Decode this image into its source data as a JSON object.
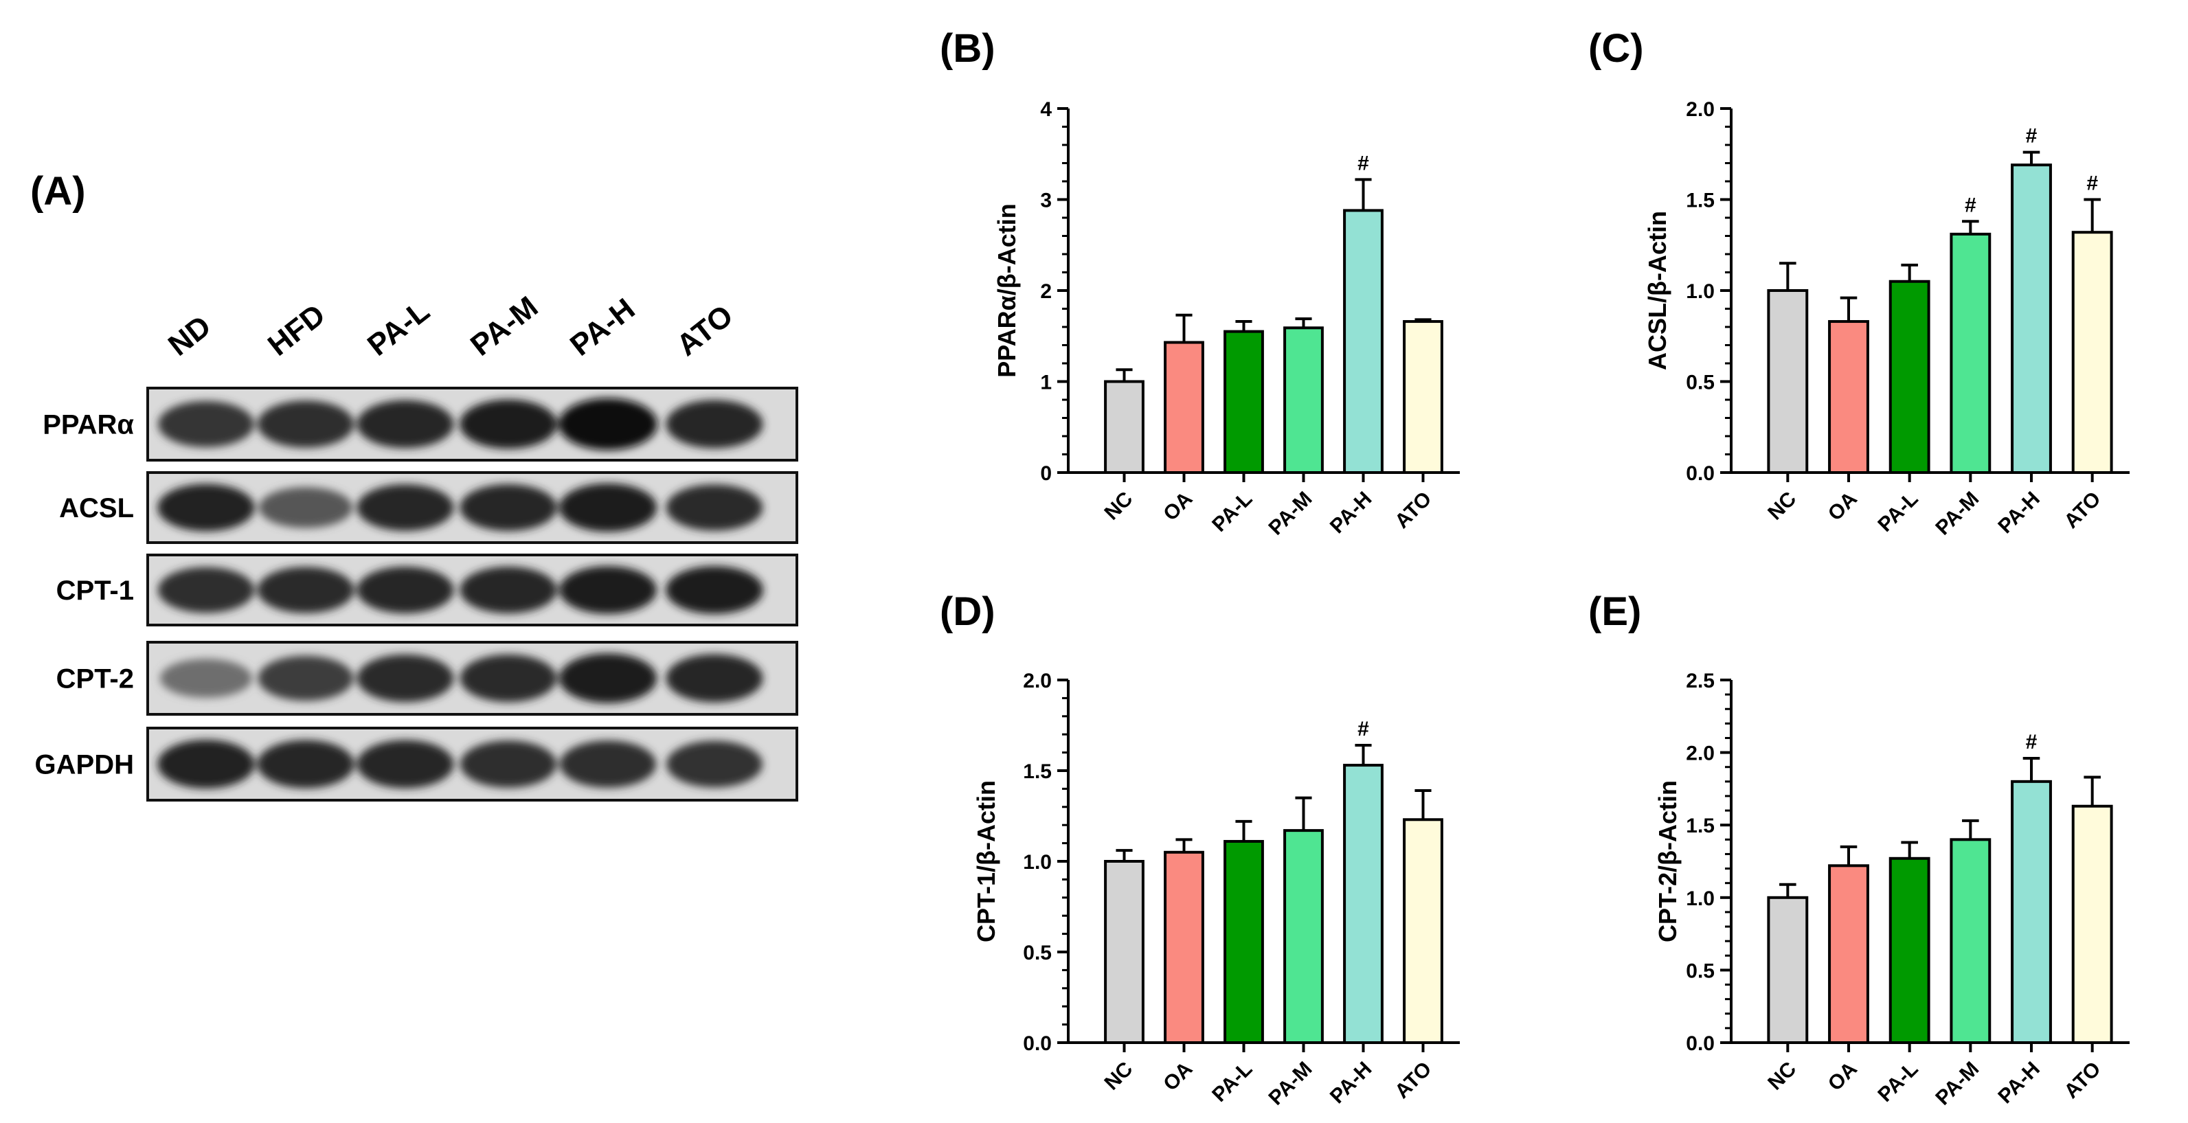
{
  "blot": {
    "panel_label": "(A)",
    "lanes": [
      "ND",
      "HFD",
      "PA-L",
      "PA-M",
      "PA-H",
      "ATO"
    ],
    "proteins": [
      "PPARα",
      "ACSL",
      "CPT-1",
      "CPT-2",
      "GAPDH"
    ],
    "band_intensity": [
      [
        0.78,
        0.82,
        0.85,
        0.9,
        1.0,
        0.86
      ],
      [
        0.88,
        0.62,
        0.85,
        0.86,
        0.92,
        0.84
      ],
      [
        0.82,
        0.84,
        0.86,
        0.86,
        0.9,
        0.9
      ],
      [
        0.5,
        0.74,
        0.84,
        0.84,
        0.92,
        0.86
      ],
      [
        0.88,
        0.86,
        0.86,
        0.82,
        0.82,
        0.8
      ]
    ]
  },
  "colors": {
    "NC": "#d3d3d3",
    "OA": "#fa8a80",
    "PA-L": "#009a00",
    "PA-M": "#4fe592",
    "PA-H": "#93e1d4",
    "ATO": "#fffbdb"
  },
  "chart_data": [
    {
      "panel": "(B)",
      "type": "bar",
      "ylabel": "PPARα/β-Actin",
      "categories": [
        "NC",
        "OA",
        "PA-L",
        "PA-M",
        "PA-H",
        "ATO"
      ],
      "values": [
        1.0,
        1.43,
        1.55,
        1.59,
        2.88,
        1.66
      ],
      "errors": [
        0.13,
        0.3,
        0.11,
        0.1,
        0.34,
        0.02
      ],
      "significance": [
        "",
        "",
        "",
        "",
        "#",
        ""
      ],
      "ylim": [
        0,
        4
      ],
      "yticks": [
        0,
        1,
        2,
        3,
        4
      ],
      "ytick_labels": [
        "0",
        "1",
        "2",
        "3",
        "4"
      ]
    },
    {
      "panel": "(C)",
      "type": "bar",
      "ylabel": "ACSL/β-Actin",
      "categories": [
        "NC",
        "OA",
        "PA-L",
        "PA-M",
        "PA-H",
        "ATO"
      ],
      "values": [
        1.0,
        0.83,
        1.05,
        1.31,
        1.69,
        1.32
      ],
      "errors": [
        0.15,
        0.13,
        0.09,
        0.07,
        0.07,
        0.18
      ],
      "significance": [
        "",
        "",
        "",
        "#",
        "#",
        "#"
      ],
      "ylim": [
        0,
        2.0
      ],
      "yticks": [
        0,
        0.5,
        1.0,
        1.5,
        2.0
      ],
      "ytick_labels": [
        "0.0",
        "0.5",
        "1.0",
        "1.5",
        "2.0"
      ]
    },
    {
      "panel": "(D)",
      "type": "bar",
      "ylabel": "CPT-1/β-Actin",
      "categories": [
        "NC",
        "OA",
        "PA-L",
        "PA-M",
        "PA-H",
        "ATO"
      ],
      "values": [
        1.0,
        1.05,
        1.11,
        1.17,
        1.53,
        1.23
      ],
      "errors": [
        0.06,
        0.07,
        0.11,
        0.18,
        0.11,
        0.16
      ],
      "significance": [
        "",
        "",
        "",
        "",
        "#",
        ""
      ],
      "ylim": [
        0,
        2.0
      ],
      "yticks": [
        0,
        0.5,
        1.0,
        1.5,
        2.0
      ],
      "ytick_labels": [
        "0.0",
        "0.5",
        "1.0",
        "1.5",
        "2.0"
      ]
    },
    {
      "panel": "(E)",
      "type": "bar",
      "ylabel": "CPT-2/β-Actin",
      "categories": [
        "NC",
        "OA",
        "PA-L",
        "PA-M",
        "PA-H",
        "ATO"
      ],
      "values": [
        1.0,
        1.22,
        1.27,
        1.4,
        1.8,
        1.63
      ],
      "errors": [
        0.09,
        0.13,
        0.11,
        0.13,
        0.16,
        0.2
      ],
      "significance": [
        "",
        "",
        "",
        "",
        "#",
        ""
      ],
      "ylim": [
        0,
        2.5
      ],
      "yticks": [
        0,
        0.5,
        1.0,
        1.5,
        2.0,
        2.5
      ],
      "ytick_labels": [
        "0.0",
        "0.5",
        "1.0",
        "1.5",
        "2.0",
        "2.5"
      ]
    }
  ]
}
